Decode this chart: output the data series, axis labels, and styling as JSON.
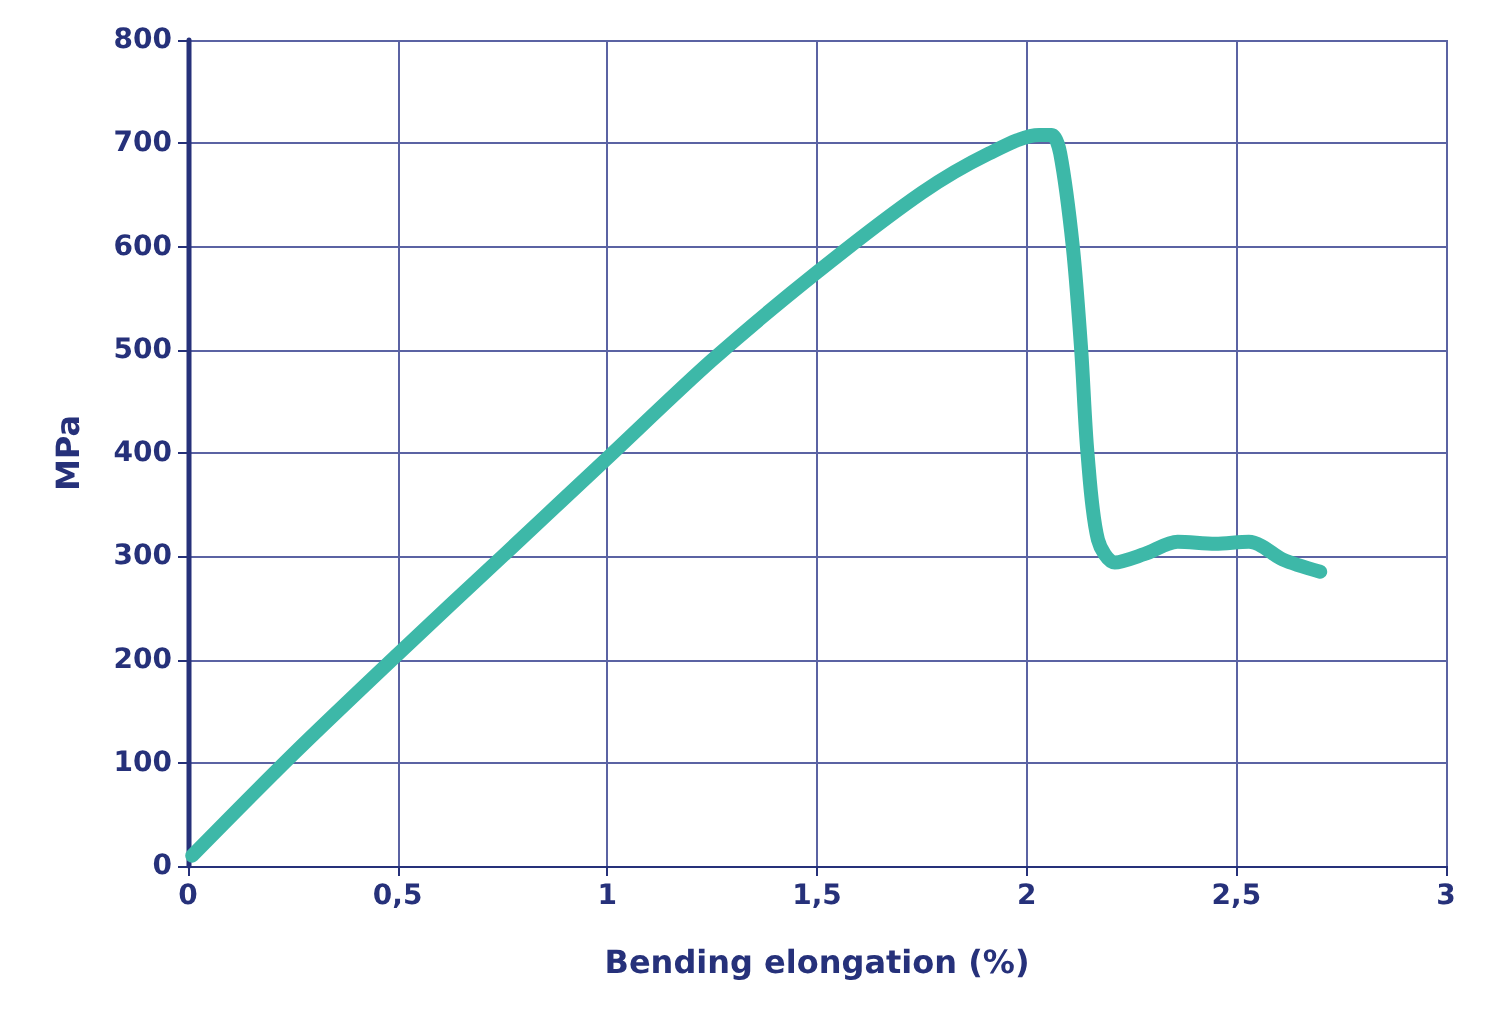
{
  "chart_data": {
    "type": "line",
    "xlabel": "Bending elongation (%)",
    "ylabel": "MPa",
    "xlim": [
      0,
      3
    ],
    "xticks": [
      0,
      {
        "value": 0.5,
        "label": "0,5"
      },
      1,
      {
        "value": 1.5,
        "label": "1,5"
      },
      2,
      {
        "value": 2.5,
        "label": "2,5"
      },
      3
    ],
    "ylim": [
      0,
      800
    ],
    "yticks": [
      0,
      100,
      200,
      300,
      400,
      500,
      600,
      700,
      800
    ],
    "grid": true,
    "line_style": "solid",
    "series": [
      {
        "color": "#3db8a8",
        "x": [
          0.01,
          0.25,
          0.5,
          0.75,
          1,
          1.25,
          1.5,
          1.75,
          1.91,
          2.03,
          2.06,
          2.08,
          2.11,
          2.13,
          2.145,
          2.17,
          2.21,
          2.28,
          2.36,
          2.45,
          2.53,
          2.56,
          2.61,
          2.7
        ],
        "values": [
          10,
          108,
          205,
          300,
          395,
          490,
          575,
          652,
          690,
          708,
          708,
          690,
          600,
          500,
          400,
          316,
          294,
          302,
          314,
          312,
          314,
          310,
          297,
          285
        ]
      }
    ]
  }
}
